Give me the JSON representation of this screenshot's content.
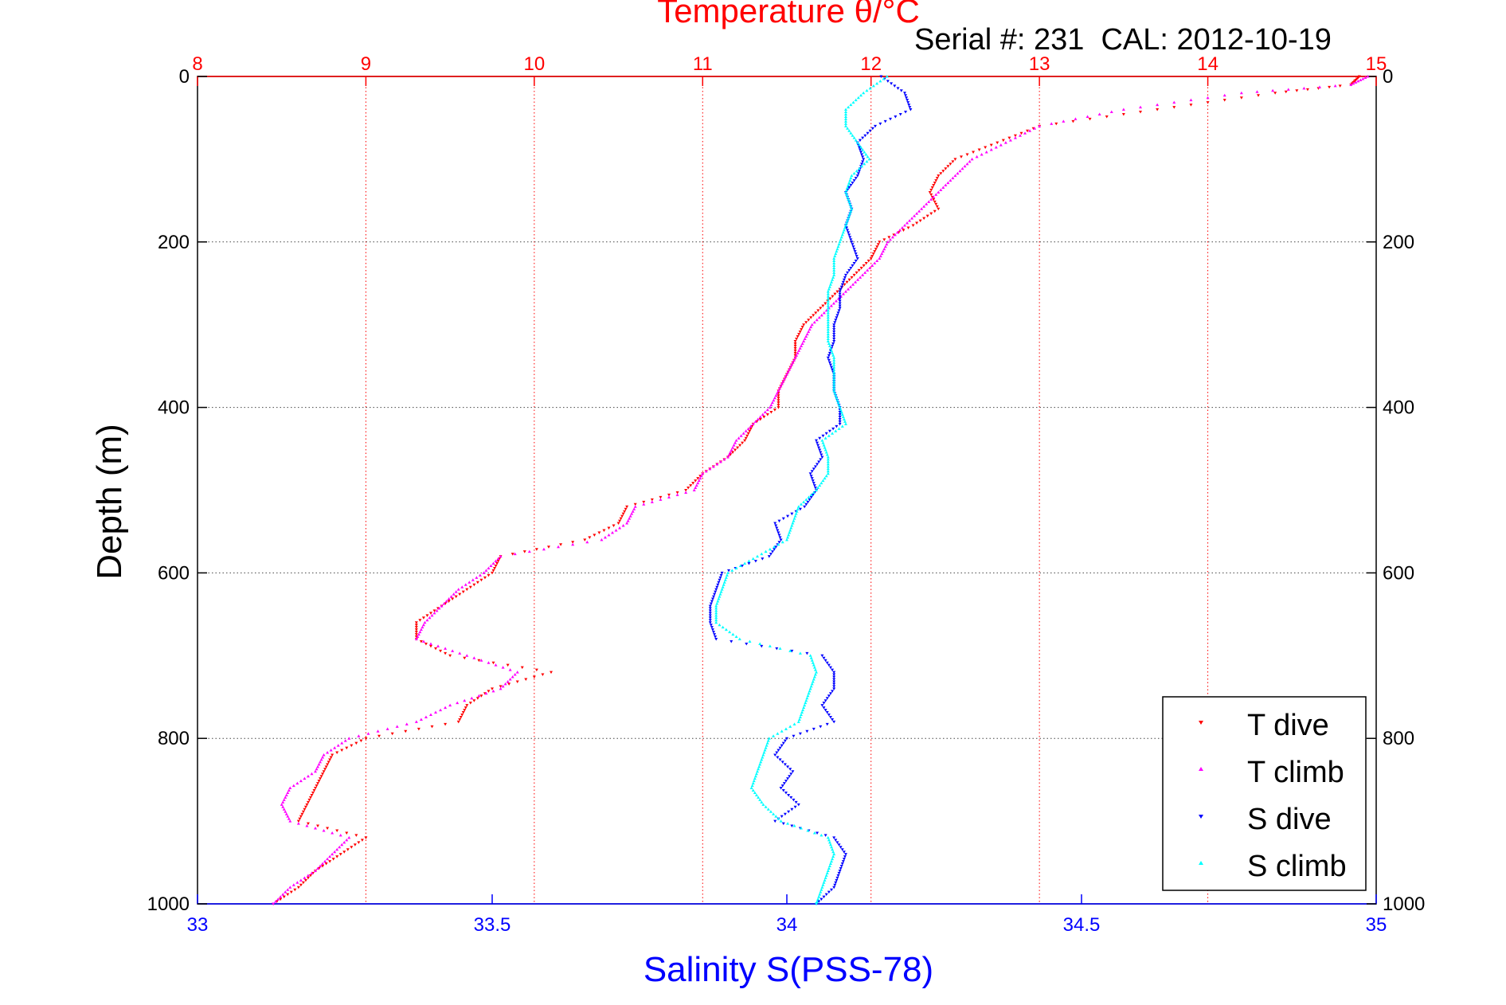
{
  "header": {
    "title": "Temperature θ/°C",
    "serial_info": "Serial #: 231  CAL: 2012-10-19"
  },
  "colors": {
    "temperature_axis": "#ff0000",
    "salinity_axis": "#0000ff",
    "t_dive": "#ff0000",
    "t_climb": "#ff00ff",
    "s_dive": "#0000ff",
    "s_climb": "#00ffff",
    "grid": "#444444"
  },
  "chart_data": {
    "type": "scatter",
    "title": "Temperature θ/°C",
    "xlabel": "Salinity S(PSS-78)",
    "ylabel": "Depth (m)",
    "x_top_label": "Temperature θ/°C",
    "x_top_range": [
      8,
      15
    ],
    "x_top_ticks": [
      "8",
      "9",
      "10",
      "11",
      "12",
      "13",
      "14",
      "15"
    ],
    "x_bottom_range": [
      33,
      35
    ],
    "x_bottom_ticks": [
      "33",
      "33.5",
      "34",
      "34.5",
      "35"
    ],
    "y_range": [
      0,
      1000
    ],
    "y_reversed": true,
    "y_ticks": [
      "0",
      "200",
      "400",
      "600",
      "800",
      "1000"
    ],
    "grid": true,
    "legend_position": "bottom-right",
    "series": [
      {
        "name": "T dive",
        "axis": "temperature",
        "depth": [
          0,
          10,
          20,
          40,
          60,
          80,
          100,
          120,
          140,
          160,
          180,
          200,
          220,
          240,
          260,
          280,
          300,
          320,
          340,
          360,
          380,
          400,
          420,
          440,
          460,
          480,
          500,
          520,
          540,
          560,
          580,
          600,
          620,
          640,
          660,
          680,
          700,
          720,
          740,
          760,
          780,
          800,
          820,
          840,
          860,
          880,
          900,
          920,
          940,
          960,
          980,
          1000
        ],
        "values": [
          14.9,
          14.85,
          14.4,
          13.7,
          13.0,
          12.75,
          12.5,
          12.4,
          12.35,
          12.4,
          12.25,
          12.05,
          12.0,
          11.9,
          11.8,
          11.7,
          11.6,
          11.55,
          11.55,
          11.5,
          11.45,
          11.45,
          11.3,
          11.25,
          11.15,
          11.0,
          10.9,
          10.55,
          10.5,
          10.3,
          9.8,
          9.75,
          9.6,
          9.45,
          9.3,
          9.3,
          9.5,
          10.1,
          9.75,
          9.6,
          9.55,
          9.0,
          8.8,
          8.75,
          8.7,
          8.65,
          8.6,
          9.0,
          8.85,
          8.7,
          8.6,
          8.45
        ]
      },
      {
        "name": "T climb",
        "axis": "temperature",
        "depth": [
          0,
          10,
          20,
          40,
          60,
          80,
          100,
          120,
          140,
          160,
          180,
          200,
          220,
          240,
          260,
          280,
          300,
          320,
          340,
          360,
          380,
          400,
          420,
          440,
          460,
          480,
          500,
          520,
          540,
          560,
          580,
          600,
          620,
          640,
          660,
          680,
          700,
          720,
          740,
          760,
          780,
          800,
          820,
          840,
          860,
          880,
          900,
          920,
          940,
          960,
          980,
          1000
        ],
        "values": [
          14.95,
          14.85,
          14.2,
          13.5,
          13.0,
          12.8,
          12.6,
          12.5,
          12.4,
          12.3,
          12.2,
          12.1,
          12.05,
          11.95,
          11.85,
          11.75,
          11.65,
          11.6,
          11.55,
          11.5,
          11.45,
          11.4,
          11.3,
          11.2,
          11.15,
          11.0,
          10.95,
          10.6,
          10.55,
          10.4,
          9.8,
          9.7,
          9.55,
          9.45,
          9.35,
          9.3,
          9.6,
          9.9,
          9.8,
          9.5,
          9.3,
          8.9,
          8.75,
          8.7,
          8.55,
          8.5,
          8.55,
          8.9,
          8.8,
          8.7,
          8.55,
          8.45
        ]
      },
      {
        "name": "S dive",
        "axis": "salinity",
        "depth": [
          0,
          20,
          40,
          60,
          80,
          100,
          120,
          140,
          160,
          180,
          200,
          220,
          240,
          260,
          280,
          300,
          320,
          340,
          360,
          380,
          400,
          420,
          440,
          460,
          480,
          500,
          520,
          540,
          560,
          580,
          600,
          620,
          640,
          660,
          680,
          700,
          720,
          740,
          760,
          780,
          800,
          820,
          840,
          860,
          880,
          900,
          920,
          940,
          960,
          980,
          1000
        ],
        "values": [
          34.16,
          34.2,
          34.21,
          34.15,
          34.12,
          34.13,
          34.12,
          34.1,
          34.11,
          34.1,
          34.11,
          34.12,
          34.1,
          34.09,
          34.09,
          34.08,
          34.08,
          34.07,
          34.08,
          34.08,
          34.09,
          34.09,
          34.05,
          34.06,
          34.04,
          34.05,
          34.03,
          33.98,
          33.99,
          33.97,
          33.89,
          33.88,
          33.87,
          33.87,
          33.88,
          34.06,
          34.08,
          34.08,
          34.06,
          34.08,
          34.0,
          33.98,
          34.01,
          33.99,
          34.02,
          33.98,
          34.08,
          34.1,
          34.09,
          34.08,
          34.05
        ]
      },
      {
        "name": "S climb",
        "axis": "salinity",
        "depth": [
          0,
          20,
          40,
          60,
          80,
          100,
          120,
          140,
          160,
          180,
          200,
          220,
          240,
          260,
          280,
          300,
          320,
          340,
          360,
          380,
          400,
          420,
          440,
          460,
          480,
          500,
          520,
          540,
          560,
          580,
          600,
          620,
          640,
          660,
          680,
          700,
          720,
          740,
          760,
          780,
          800,
          820,
          840,
          860,
          880,
          900,
          920,
          940,
          960,
          980,
          1000
        ],
        "values": [
          34.17,
          34.13,
          34.1,
          34.1,
          34.12,
          34.14,
          34.11,
          34.1,
          34.11,
          34.1,
          34.09,
          34.08,
          34.08,
          34.07,
          34.07,
          34.07,
          34.07,
          34.08,
          34.08,
          34.08,
          34.09,
          34.1,
          34.06,
          34.07,
          34.07,
          34.05,
          34.02,
          34.01,
          34.0,
          33.95,
          33.9,
          33.89,
          33.88,
          33.88,
          33.92,
          34.04,
          34.05,
          34.04,
          34.03,
          34.02,
          33.97,
          33.96,
          33.95,
          33.94,
          33.96,
          33.99,
          34.07,
          34.08,
          34.07,
          34.06,
          34.05
        ]
      }
    ]
  }
}
